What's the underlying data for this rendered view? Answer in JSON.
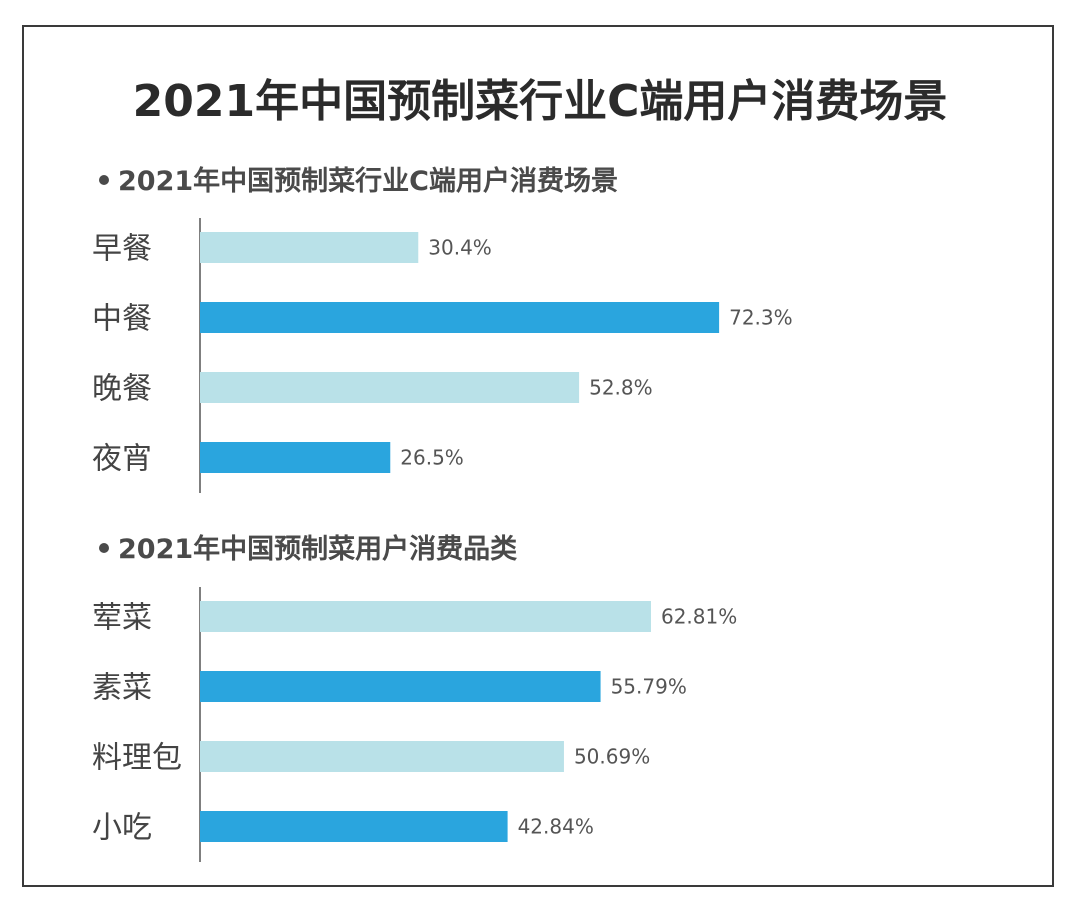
{
  "title": "2021年中国预制菜行业C端用户消费场景",
  "colors": {
    "light_bar": "#b9e1e8",
    "dark_bar": "#2aa5de",
    "axis": "#555555",
    "border": "#3a3a3a"
  },
  "chart_data": [
    {
      "type": "bar",
      "orientation": "horizontal",
      "title": "2021年中国预制菜行业C端用户消费场景",
      "categories": [
        "早餐",
        "中餐",
        "晚餐",
        "夜宵"
      ],
      "values": [
        30.4,
        72.3,
        52.8,
        26.5
      ],
      "labels": [
        "30.4%",
        "72.3%",
        "52.8%",
        "26.5%"
      ],
      "unit": "%",
      "xlim": [
        0,
        100
      ],
      "grid": false,
      "legend": "none"
    },
    {
      "type": "bar",
      "orientation": "horizontal",
      "title": "2021年中国预制菜用户消费品类",
      "categories": [
        "荤菜",
        "素菜",
        "料理包",
        "小吃"
      ],
      "values": [
        62.81,
        55.79,
        50.69,
        42.84
      ],
      "labels": [
        "62.81%",
        "55.79%",
        "50.69%",
        "42.84%"
      ],
      "unit": "%",
      "xlim": [
        0,
        100
      ],
      "grid": false,
      "legend": "none"
    }
  ]
}
